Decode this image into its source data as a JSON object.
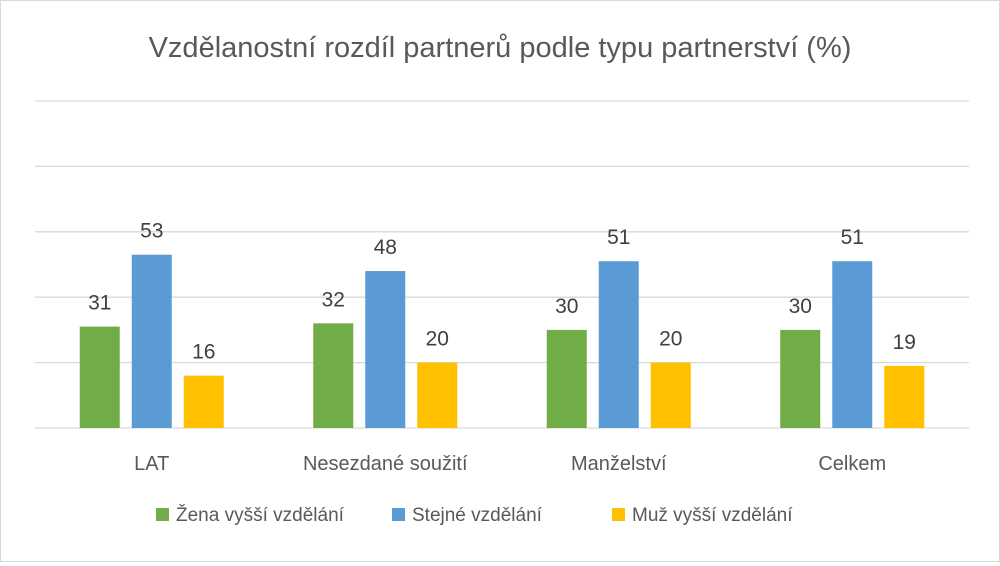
{
  "chart_data": {
    "type": "bar",
    "title": "Vzdělanostní rozdíl partnerů podle typu partnerství (%)",
    "xlabel": "",
    "ylabel": "",
    "categories": [
      "LAT",
      "Nesezdané soužití",
      "Manželství",
      "Celkem"
    ],
    "series": [
      {
        "name": "Žena vyšší vzdělání",
        "values": [
          31,
          32,
          30,
          30
        ],
        "color": "#70ad47"
      },
      {
        "name": "Stejné vzdělání",
        "values": [
          53,
          48,
          51,
          51
        ],
        "color": "#5b9bd5"
      },
      {
        "name": "Muž vyšší vzdělání",
        "values": [
          16,
          20,
          20,
          19
        ],
        "color": "#ffc000"
      }
    ],
    "ylim": [
      0,
      100
    ],
    "grid": true,
    "legend": "bottom",
    "data_labels": true
  }
}
